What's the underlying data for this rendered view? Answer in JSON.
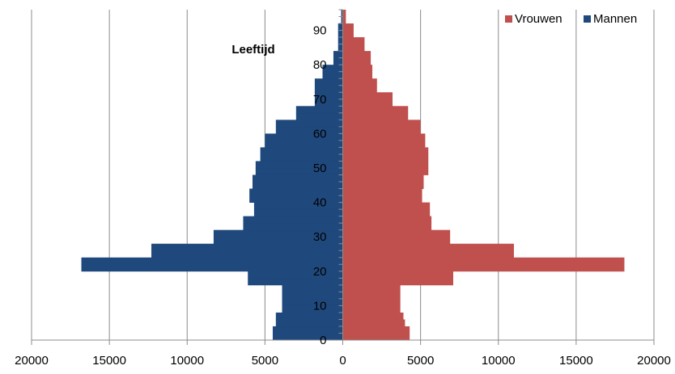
{
  "chart_data": {
    "type": "bar",
    "orientation": "horizontal",
    "title": "",
    "ylabel": "Leeftijd",
    "xlabel": "",
    "xlim": [
      -20000,
      20000
    ],
    "x_ticks": [
      -20000,
      -15000,
      -10000,
      -5000,
      0,
      5000,
      10000,
      15000,
      20000
    ],
    "x_tick_labels": [
      "20000",
      "15000",
      "10000",
      "5000",
      "0",
      "5000",
      "10000",
      "15000",
      "20000"
    ],
    "y_ticks": [
      0,
      10,
      20,
      30,
      40,
      50,
      60,
      70,
      80,
      90
    ],
    "y_tick_labels": [
      "0",
      "10",
      "20",
      "30",
      "40",
      "50",
      "60",
      "70",
      "80",
      "90"
    ],
    "age_group_width": 2,
    "categories": [
      "0-1",
      "2-3",
      "4-5",
      "6-7",
      "8-9",
      "10-11",
      "12-13",
      "14-15",
      "16-17",
      "18-19",
      "20-21",
      "22-23",
      "24-25",
      "26-27",
      "28-29",
      "30-31",
      "32-33",
      "34-35",
      "36-37",
      "38-39",
      "40-41",
      "42-43",
      "44-45",
      "46-47",
      "48-49",
      "50-51",
      "52-53",
      "54-55",
      "56-57",
      "58-59",
      "60-61",
      "62-63",
      "64-65",
      "66-67",
      "68-69",
      "70-71",
      "72-73",
      "74-75",
      "76-77",
      "78-79",
      "80-81",
      "82-83",
      "84-85",
      "86-87",
      "88-89",
      "90-91",
      "92-93",
      "94-95"
    ],
    "grid": true,
    "legend_position": "top-right",
    "series": [
      {
        "name": "Vrouwen",
        "color": "#c0504d",
        "values": [
          4300,
          4300,
          4000,
          3900,
          3700,
          3700,
          3700,
          3700,
          7100,
          7100,
          18100,
          18100,
          11000,
          11000,
          6900,
          6900,
          5700,
          5700,
          5600,
          5600,
          5100,
          5100,
          5200,
          5200,
          5500,
          5500,
          5500,
          5500,
          5300,
          5300,
          5000,
          5000,
          4200,
          4200,
          3200,
          3200,
          2200,
          2200,
          1900,
          1900,
          1800,
          1800,
          1400,
          1400,
          700,
          700,
          200,
          200
        ]
      },
      {
        "name": "Mannen",
        "color": "#1f497d",
        "values": [
          4500,
          4500,
          4300,
          4300,
          3900,
          3900,
          3900,
          3900,
          6100,
          6100,
          16800,
          16800,
          12300,
          12300,
          8300,
          8300,
          6400,
          6400,
          5700,
          5700,
          6000,
          6000,
          5800,
          5800,
          5600,
          5600,
          5300,
          5300,
          5000,
          5000,
          4300,
          4300,
          3000,
          3000,
          1800,
          1800,
          1800,
          1800,
          1300,
          1300,
          600,
          600,
          300,
          300,
          300,
          300,
          100,
          100
        ]
      }
    ]
  }
}
